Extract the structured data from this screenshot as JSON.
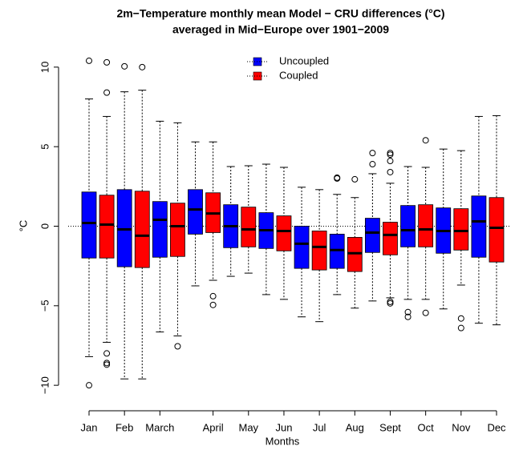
{
  "chart_data": {
    "type": "box",
    "title": [
      "2m−Temperature monthly mean Model − CRU differences (°C)",
      "averaged in Mid−Europe over 1901−2009"
    ],
    "x_label": "Months",
    "y_label": "°C",
    "categories": [
      "Jan",
      null,
      "Feb",
      null,
      "March",
      null,
      null,
      "April",
      null,
      "May",
      null,
      "Jun",
      null,
      "Jul",
      null,
      "Aug",
      null,
      "Sept",
      null,
      "Oct",
      null,
      "Nov",
      null,
      "Dec"
    ],
    "ylim": [
      -11.2,
      11.2
    ],
    "yticks": [
      {
        "value": -10,
        "label": "−10"
      },
      {
        "value": -5,
        "label": "−5"
      },
      0,
      5,
      10
    ],
    "reference_line": 0,
    "legend": "top",
    "series": [
      {
        "name": "Uncoupled",
        "color": "#0000ff",
        "values": [
          {
            "low": -8.2,
            "q1": -2.0,
            "median": 0.2,
            "q3": 2.15,
            "high": 8.0,
            "outliers": [
              10.4,
              -10.0
            ]
          },
          null,
          {
            "low": -9.6,
            "q1": -2.55,
            "median": -0.2,
            "q3": 2.3,
            "high": 8.45,
            "outliers": [
              10.05
            ]
          },
          null,
          {
            "low": -6.65,
            "q1": -1.95,
            "median": 0.4,
            "q3": 1.55,
            "high": 6.6,
            "outliers": []
          },
          null,
          {
            "low": -3.75,
            "q1": -0.5,
            "median": 1.05,
            "q3": 2.3,
            "high": 5.3,
            "outliers": []
          },
          null,
          {
            "low": -3.15,
            "q1": -1.35,
            "median": 0.0,
            "q3": 1.35,
            "high": 3.75,
            "outliers": []
          },
          null,
          {
            "low": -4.3,
            "q1": -1.4,
            "median": -0.25,
            "q3": 0.85,
            "high": 3.9,
            "outliers": []
          },
          null,
          {
            "low": -5.7,
            "q1": -2.65,
            "median": -1.1,
            "q3": 0.0,
            "high": 2.45,
            "outliers": []
          },
          null,
          {
            "low": -4.3,
            "q1": -2.65,
            "median": -1.5,
            "q3": -0.5,
            "high": 2.0,
            "outliers": [
              3.05,
              3.0
            ]
          },
          null,
          {
            "low": -4.7,
            "q1": -1.65,
            "median": -0.4,
            "q3": 0.5,
            "high": 3.3,
            "outliers": [
              4.6,
              3.9
            ]
          },
          null,
          {
            "low": -4.6,
            "q1": -1.3,
            "median": -0.25,
            "q3": 1.3,
            "high": 3.75,
            "outliers": [
              -5.4,
              -5.7
            ]
          },
          null,
          {
            "low": -5.2,
            "q1": -1.7,
            "median": -0.3,
            "q3": 1.15,
            "high": 4.85,
            "outliers": []
          },
          null,
          {
            "low": -6.1,
            "q1": -1.95,
            "median": 0.3,
            "q3": 1.9,
            "high": 6.9,
            "outliers": []
          },
          null
        ]
      },
      {
        "name": "Coupled",
        "color": "#ff0000",
        "values": [
          null,
          {
            "low": -7.3,
            "q1": -2.0,
            "median": 0.1,
            "q3": 1.95,
            "high": 6.9,
            "outliers": [
              10.3,
              8.4,
              -8.0,
              -8.6,
              -8.7
            ]
          },
          null,
          {
            "low": -9.6,
            "q1": -2.6,
            "median": -0.6,
            "q3": 2.2,
            "high": 8.55,
            "outliers": [
              10.0
            ]
          },
          null,
          {
            "low": -6.9,
            "q1": -1.9,
            "median": 0.0,
            "q3": 1.45,
            "high": 6.5,
            "outliers": [
              -7.55
            ]
          },
          null,
          {
            "low": -3.4,
            "q1": -0.4,
            "median": 0.8,
            "q3": 2.1,
            "high": 5.3,
            "outliers": [
              -4.4,
              -4.95
            ]
          },
          null,
          {
            "low": -2.95,
            "q1": -1.3,
            "median": -0.2,
            "q3": 1.2,
            "high": 3.8,
            "outliers": []
          },
          null,
          {
            "low": -4.6,
            "q1": -1.55,
            "median": -0.3,
            "q3": 0.65,
            "high": 3.7,
            "outliers": []
          },
          null,
          {
            "low": -6.0,
            "q1": -2.75,
            "median": -1.3,
            "q3": -0.3,
            "high": 2.3,
            "outliers": []
          },
          null,
          {
            "low": -5.15,
            "q1": -2.85,
            "median": -1.7,
            "q3": -0.7,
            "high": 1.8,
            "outliers": [
              2.95
            ]
          },
          null,
          {
            "low": -4.5,
            "q1": -1.8,
            "median": -0.55,
            "q3": 0.25,
            "high": 2.7,
            "outliers": [
              4.6,
              4.5,
              4.1,
              3.4,
              -4.75,
              -4.85
            ]
          },
          null,
          {
            "low": -4.6,
            "q1": -1.3,
            "median": -0.2,
            "q3": 1.35,
            "high": 3.7,
            "outliers": [
              5.4,
              -5.45
            ]
          },
          null,
          {
            "low": -3.7,
            "q1": -1.5,
            "median": -0.3,
            "q3": 1.1,
            "high": 4.75,
            "outliers": [
              -5.8,
              -6.4
            ]
          },
          null,
          {
            "low": -6.2,
            "q1": -2.25,
            "median": -0.1,
            "q3": 1.8,
            "high": 6.95,
            "outliers": []
          }
        ]
      }
    ]
  }
}
